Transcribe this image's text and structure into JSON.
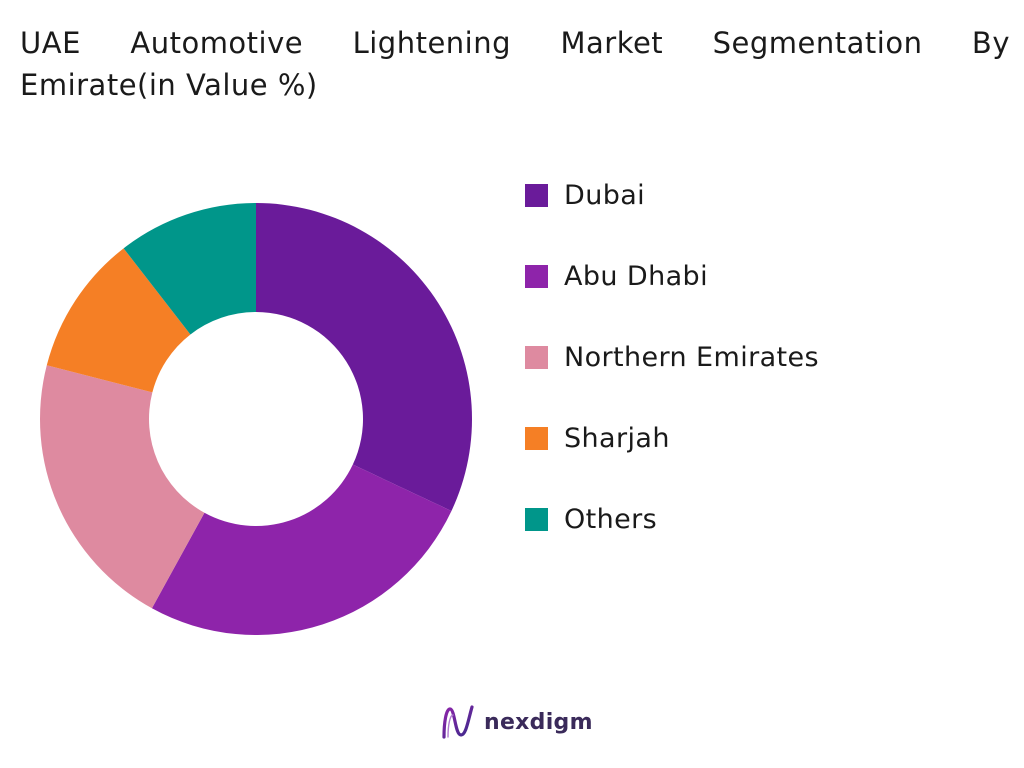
{
  "chart_data": {
    "type": "pie",
    "title_line1": "UAE Automotive Lightening Market Segmentation By",
    "title_line2": "Emirate(in Value %)",
    "donut": true,
    "legend_position": "right",
    "series": [
      {
        "name": "Dubai",
        "value": 32,
        "color": "#6a1b9a"
      },
      {
        "name": "Abu Dhabi",
        "value": 26,
        "color": "#8e24aa"
      },
      {
        "name": "Northern Emirates",
        "value": 21,
        "color": "#de8aa0"
      },
      {
        "name": "Sharjah",
        "value": 10.5,
        "color": "#f57f25"
      },
      {
        "name": "Others",
        "value": 10.5,
        "color": "#00968a"
      }
    ]
  },
  "brand": {
    "name": "nexdigm",
    "logo_icon": "nexdigm-logo-icon"
  }
}
